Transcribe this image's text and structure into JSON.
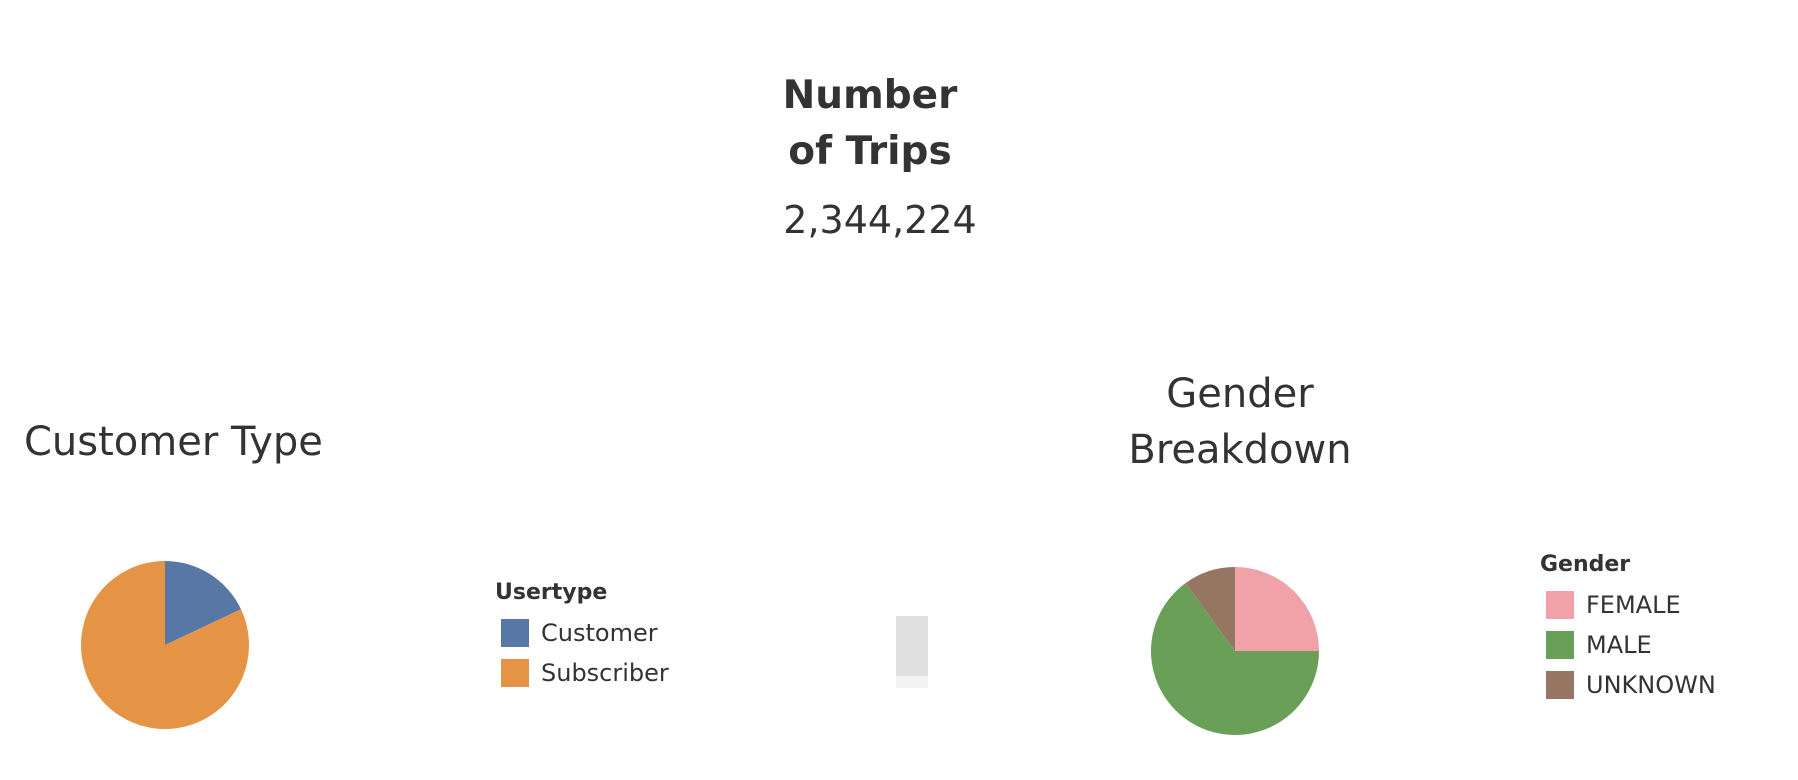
{
  "kpi": {
    "title_line1": "Number",
    "title_line2": "of Trips",
    "value": "2,344,224"
  },
  "chart_data": [
    {
      "type": "pie",
      "title": "Customer Type",
      "legend_title": "Usertype",
      "legend_position": "right",
      "slices": [
        {
          "name": "Customer",
          "value": 0.18,
          "color": "#5778a4"
        },
        {
          "name": "Subscriber",
          "value": 0.82,
          "color": "#e49444"
        }
      ]
    },
    {
      "type": "pie",
      "title_line1": "Gender",
      "title_line2": "Breakdown",
      "legend_title": "Gender",
      "legend_position": "right",
      "slices": [
        {
          "name": "FEMALE",
          "value": 0.25,
          "color": "#f1a2a9"
        },
        {
          "name": "MALE",
          "value": 0.65,
          "color": "#6a9f58"
        },
        {
          "name": "UNKNOWN",
          "value": 0.1,
          "color": "#967662"
        }
      ]
    }
  ]
}
